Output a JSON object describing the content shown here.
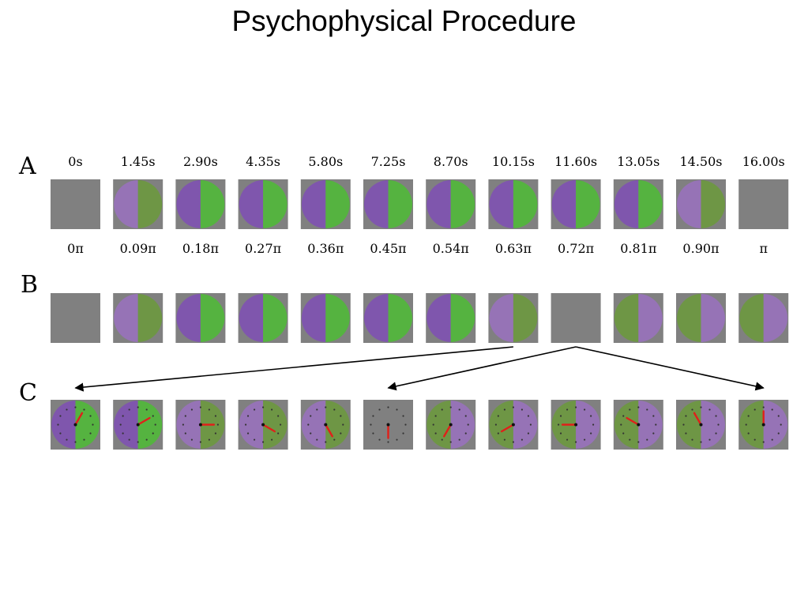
{
  "title": "Psychophysical Procedure",
  "colors": {
    "gray": "#808080",
    "purple_strong": "#7f56ad",
    "purple_light": "#9673b6",
    "green_strong": "#55b340",
    "green_dull": "#6e9645",
    "arrow": "#000000",
    "clock_hand": "#e0201a"
  },
  "panel_a": {
    "label": "A",
    "times": [
      "0s",
      "1.45s",
      "2.90s",
      "4.35s",
      "5.80s",
      "7.25s",
      "8.70s",
      "10.15s",
      "11.60s",
      "13.05s",
      "14.50s",
      "16.00s"
    ],
    "phases": [
      "0π",
      "0.09π",
      "0.18π",
      "0.27π",
      "0.36π",
      "0.45π",
      "0.54π",
      "0.63π",
      "0.72π",
      "0.81π",
      "0.90π",
      "π"
    ],
    "frames": [
      "gray",
      "pg-light",
      "pg",
      "pg",
      "pg",
      "pg",
      "pg",
      "pg",
      "pg",
      "pg",
      "pg-light",
      "gray"
    ]
  },
  "panel_b": {
    "label": "B",
    "frames": [
      "gray",
      "pg-light",
      "pg",
      "pg",
      "pg",
      "pg",
      "pg",
      "pg-light",
      "gray",
      "gp",
      "gp",
      "gp"
    ]
  },
  "panel_c": {
    "label": "C",
    "frames": [
      "pg",
      "pg",
      "pg-light",
      "pg-light",
      "pg-light",
      "gray",
      "gp",
      "gp",
      "gp",
      "gp",
      "gp",
      "gp"
    ],
    "hand_angles_deg": [
      30,
      60,
      90,
      120,
      150,
      180,
      210,
      240,
      270,
      300,
      330,
      0
    ]
  },
  "arrows": [
    {
      "from_frame_b": 7,
      "to_frame_c": 0
    },
    {
      "from_frame_b": 8,
      "to_frame_c": 5
    },
    {
      "from_frame_b": 8,
      "to_frame_c": 11
    }
  ]
}
